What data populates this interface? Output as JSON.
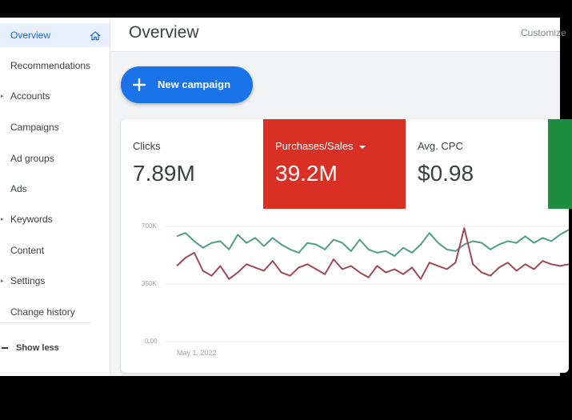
{
  "sidebar": {
    "items": [
      {
        "label": "Overview",
        "active": true
      },
      {
        "label": "Recommendations"
      },
      {
        "label": "Accounts",
        "expandable": true
      },
      {
        "label": "Campaigns"
      },
      {
        "label": "Ad groups"
      },
      {
        "label": "Ads"
      },
      {
        "label": "Keywords",
        "expandable": true
      },
      {
        "label": "Content"
      },
      {
        "label": "Settings",
        "expandable": true
      },
      {
        "label": "Change history"
      }
    ],
    "show_less": "Show less"
  },
  "header": {
    "title": "Overview",
    "customize": "Customize"
  },
  "new_campaign": {
    "label": "New campaign"
  },
  "metrics": [
    {
      "label": "Clicks",
      "value": "7.89M"
    },
    {
      "label": "Purchases/Sales",
      "value": "39.2M",
      "color": "#d93025"
    },
    {
      "label": "Avg. CPC",
      "value": "$0.98"
    }
  ],
  "chart_data": {
    "type": "line",
    "y_ticks": [
      "700K",
      "350K",
      "0.00"
    ],
    "x_start_label": "May 1, 2022",
    "ylim": [
      0,
      700000
    ],
    "series": [
      {
        "color": "#4e9e86",
        "values": [
          640000,
          660000,
          610000,
          570000,
          600000,
          610000,
          560000,
          650000,
          600000,
          630000,
          580000,
          630000,
          590000,
          560000,
          540000,
          600000,
          590000,
          560000,
          620000,
          600000,
          550000,
          620000,
          560000,
          540000,
          550000,
          520000,
          570000,
          540000,
          590000,
          660000,
          600000,
          560000,
          550000,
          590000,
          610000,
          600000,
          560000,
          590000,
          610000,
          600000,
          640000,
          600000,
          630000,
          610000,
          650000,
          680000
        ]
      },
      {
        "color": "#a04658",
        "values": [
          460000,
          510000,
          540000,
          430000,
          400000,
          460000,
          380000,
          420000,
          470000,
          450000,
          430000,
          490000,
          420000,
          400000,
          450000,
          470000,
          440000,
          410000,
          500000,
          440000,
          460000,
          420000,
          390000,
          460000,
          420000,
          440000,
          410000,
          450000,
          380000,
          480000,
          460000,
          440000,
          480000,
          690000,
          470000,
          420000,
          400000,
          450000,
          480000,
          430000,
          470000,
          440000,
          490000,
          470000,
          460000,
          470000
        ]
      }
    ]
  }
}
